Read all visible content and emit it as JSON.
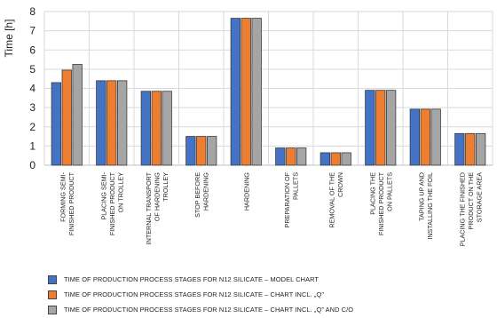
{
  "chart_data": {
    "type": "bar",
    "ylabel": "Time [h]",
    "ylim": [
      0,
      8
    ],
    "yticks": [
      0,
      1,
      2,
      3,
      4,
      5,
      6,
      7,
      8
    ],
    "grid": true,
    "legend_position": "bottom",
    "categories": [
      [
        "FORMING SEMI-",
        "FINISHED PRODUCT"
      ],
      [
        "PLACING SEMI-",
        "FINISHED PRODUCT",
        "ON TROLLEY"
      ],
      [
        "INTERNAL TRANSPORT",
        "OF HARDENING",
        "TROLLEY"
      ],
      [
        "STOP BEFORE",
        "HARDENING"
      ],
      [
        "HARDENING"
      ],
      [
        "PREPARATION OF",
        "PALLETS"
      ],
      [
        "REMOVAL OF THE",
        "CROWN"
      ],
      [
        "PLACING THE",
        "FINISHED PRODUCT",
        "ON PALLETS"
      ],
      [
        "TAPING UP AND",
        "INSTALLING THE FOIL"
      ],
      [
        "PLACING THE FINISHED",
        "PRODUCT ON THE",
        "STORAGE AREA"
      ]
    ],
    "series": [
      {
        "name": "TIME OF PRODUCTION PROCESS STAGES FOR N12 SILICATE – MODEL CHART",
        "color": "#4472c4",
        "values": [
          4.3,
          4.4,
          3.85,
          1.5,
          7.65,
          0.9,
          0.65,
          3.9,
          2.92,
          1.65
        ]
      },
      {
        "name": "TIME OF PRODUCTION PROCESS STAGES FOR N12 SILICATE – CHART INCL. „Q”",
        "color": "#ed7d31",
        "values": [
          4.95,
          4.4,
          3.85,
          1.5,
          7.65,
          0.9,
          0.65,
          3.9,
          2.92,
          1.65
        ]
      },
      {
        "name": "TIME OF PRODUCTION PROCESS STAGES FOR N12 SILICATE – CHART INCL. „Q” AND C/O",
        "color": "#a5a5a5",
        "values": [
          5.25,
          4.4,
          3.85,
          1.5,
          7.65,
          0.9,
          0.65,
          3.9,
          2.92,
          1.65
        ]
      }
    ]
  }
}
